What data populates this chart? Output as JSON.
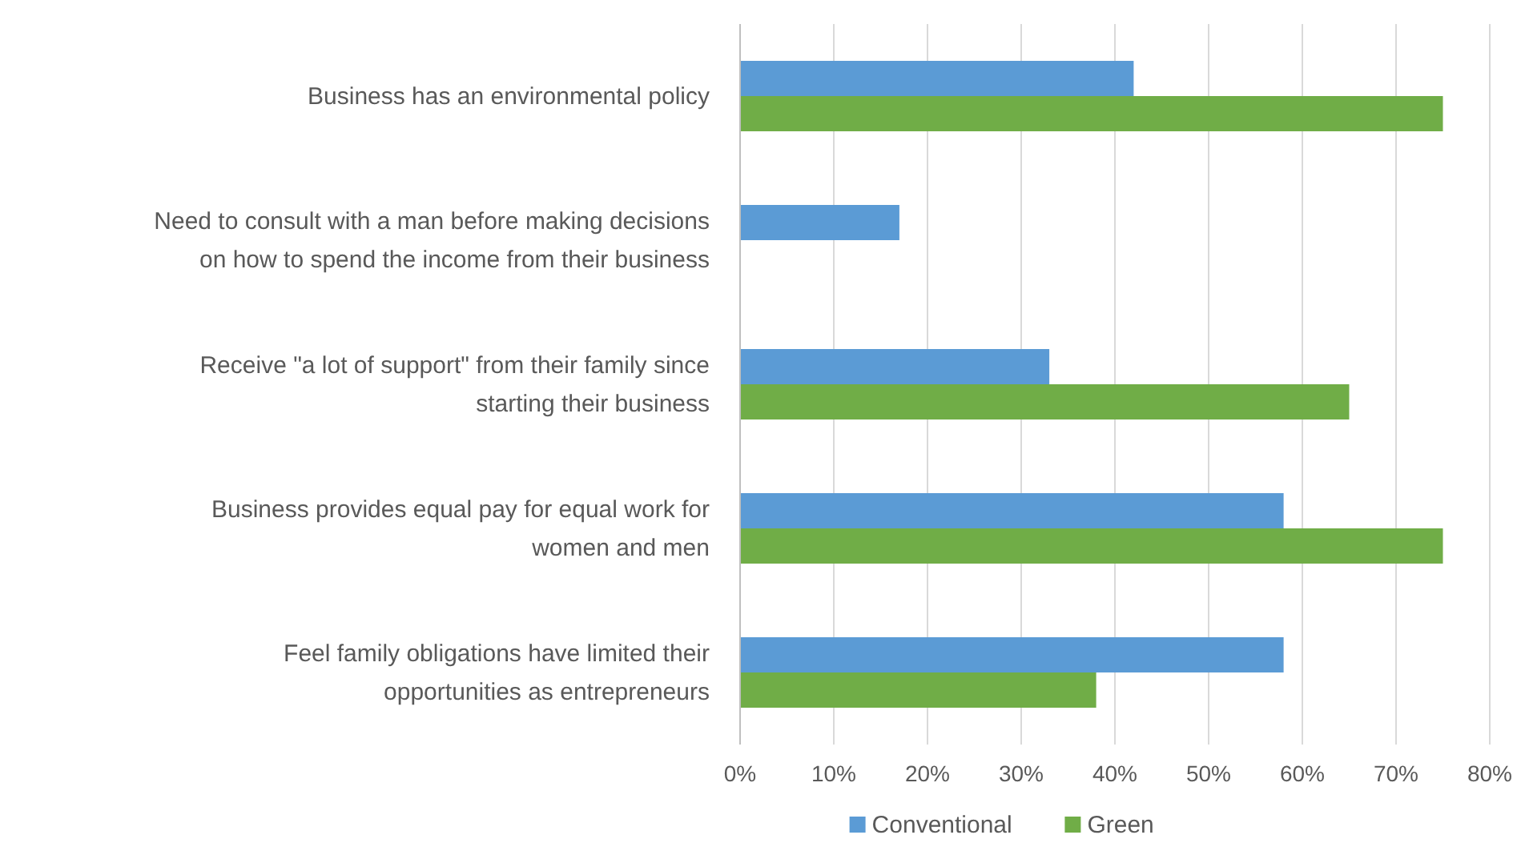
{
  "chart_data": {
    "type": "bar",
    "orientation": "horizontal",
    "categories": [
      "Business has an environmental policy",
      "Need to consult with a man before making decisions on how to spend the income from their business",
      "Receive \"a lot of support\" from their family since starting their business",
      "Business provides equal pay for equal work for women and men",
      "Feel family obligations have limited their opportunities as entrepreneurs"
    ],
    "series": [
      {
        "name": "Conventional",
        "color": "#5b9bd5",
        "values": [
          42,
          17,
          33,
          58,
          58
        ]
      },
      {
        "name": "Green",
        "color": "#70ad47",
        "values": [
          75,
          null,
          65,
          75,
          38
        ]
      }
    ],
    "xlim": [
      0,
      80
    ],
    "xticks": [
      {
        "value": 0,
        "label": "0%"
      },
      {
        "value": 10,
        "label": "10%"
      },
      {
        "value": 20,
        "label": "20%"
      },
      {
        "value": 30,
        "label": "30%"
      },
      {
        "value": 40,
        "label": "40%"
      },
      {
        "value": 50,
        "label": "50%"
      },
      {
        "value": 60,
        "label": "60%"
      },
      {
        "value": 70,
        "label": "70%"
      },
      {
        "value": 80,
        "label": "80%"
      }
    ],
    "grid": "x",
    "legend": "bottom"
  }
}
